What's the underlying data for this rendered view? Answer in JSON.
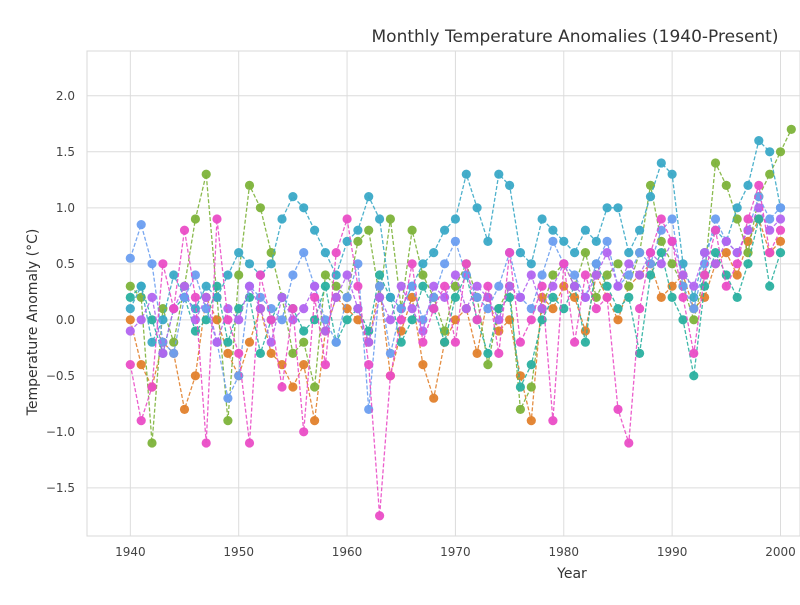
{
  "chart_data": {
    "type": "line",
    "title": "Monthly Temperature Anomalies (1940-Present)",
    "xlabel": "Year",
    "ylabel": "Temperature Anomaly (°C)",
    "xlim": [
      1936,
      2001.8
    ],
    "ylim": [
      -1.93,
      2.4
    ],
    "grid": true,
    "legend": "none",
    "x_ticks": [
      1940,
      1950,
      1960,
      1970,
      1980,
      1990,
      2000
    ],
    "x_tick_labels": [
      "1940",
      "1950",
      "1960",
      "1970",
      "1980",
      "1990",
      "2000"
    ],
    "y_ticks": [
      -1.5,
      -1.0,
      -0.5,
      0.0,
      0.5,
      1.0,
      1.5,
      2.0
    ],
    "y_tick_labels": [
      "−1.5",
      "−1.0",
      "−0.5",
      "0.0",
      "0.5",
      "1.0",
      "1.5",
      "2.0"
    ],
    "marker": "circle",
    "line_style": "dashed",
    "series": [
      {
        "color": "#e1812c",
        "x": [
          1940,
          1941,
          1942,
          1943,
          1944,
          1945,
          1946,
          1947,
          1948,
          1949,
          1950,
          1951,
          1952,
          1953,
          1954,
          1955,
          1956,
          1957,
          1958,
          1959,
          1960,
          1961,
          1962,
          1963,
          1964,
          1965,
          1966,
          1967,
          1968,
          1969,
          1970,
          1971,
          1972,
          1973,
          1974,
          1975,
          1976,
          1977,
          1978,
          1979,
          1980,
          1981,
          1982,
          1983,
          1984,
          1985,
          1986,
          1987,
          1988,
          1989,
          1990,
          1991,
          1992,
          1993,
          1994,
          1995,
          1996,
          1997,
          1998,
          1999,
          2000
        ],
        "y": [
          0.0,
          -0.4,
          -0.6,
          -0.2,
          -0.3,
          -0.8,
          -0.5,
          0.2,
          0.0,
          -0.3,
          -0.5,
          -0.2,
          0.1,
          -0.3,
          -0.4,
          -0.6,
          -0.4,
          -0.9,
          -0.1,
          0.2,
          0.1,
          0.0,
          -0.2,
          0.3,
          -0.5,
          -0.1,
          0.2,
          -0.4,
          -0.7,
          -0.2,
          0.0,
          0.1,
          -0.3,
          0.2,
          -0.1,
          0.0,
          -0.5,
          -0.9,
          0.2,
          0.1,
          0.3,
          0.2,
          -0.1,
          0.4,
          0.2,
          0.0,
          0.3,
          0.4,
          0.5,
          0.2,
          0.3,
          0.4,
          0.1,
          0.2,
          0.5,
          0.6,
          0.4,
          0.7,
          0.9,
          0.6,
          0.7
        ]
      },
      {
        "color": "#7db33a",
        "x": [
          1940,
          1941,
          1942,
          1943,
          1944,
          1945,
          1946,
          1947,
          1948,
          1949,
          1950,
          1951,
          1952,
          1953,
          1954,
          1955,
          1956,
          1957,
          1958,
          1959,
          1960,
          1961,
          1962,
          1963,
          1964,
          1965,
          1966,
          1967,
          1968,
          1969,
          1970,
          1971,
          1972,
          1973,
          1974,
          1975,
          1976,
          1977,
          1978,
          1979,
          1980,
          1981,
          1982,
          1983,
          1984,
          1985,
          1986,
          1987,
          1988,
          1989,
          1990,
          1991,
          1992,
          1993,
          1994,
          1995,
          1996,
          1997,
          1998,
          1999,
          2000,
          2001
        ],
        "y": [
          0.3,
          0.2,
          -1.1,
          0.1,
          -0.2,
          0.3,
          0.9,
          1.3,
          0.2,
          -0.9,
          0.4,
          1.2,
          1.0,
          0.6,
          0.2,
          -0.3,
          -0.2,
          -0.6,
          0.4,
          0.3,
          0.2,
          0.7,
          0.8,
          0.2,
          0.9,
          0.1,
          0.8,
          0.4,
          0.2,
          -0.1,
          0.3,
          0.5,
          0.2,
          -0.4,
          0.1,
          0.3,
          -0.8,
          -0.6,
          0.1,
          0.4,
          0.5,
          0.3,
          0.6,
          0.2,
          0.4,
          0.5,
          0.3,
          0.6,
          1.2,
          0.7,
          0.5,
          0.3,
          0.0,
          0.4,
          1.4,
          1.2,
          0.9,
          0.6,
          1.1,
          1.3,
          1.5,
          1.7
        ]
      },
      {
        "color": "#2ab0a0",
        "x": [
          1940,
          1941,
          1942,
          1943,
          1944,
          1945,
          1946,
          1947,
          1948,
          1949,
          1950,
          1951,
          1952,
          1953,
          1954,
          1955,
          1956,
          1957,
          1958,
          1959,
          1960,
          1961,
          1962,
          1963,
          1964,
          1965,
          1966,
          1967,
          1968,
          1969,
          1970,
          1971,
          1972,
          1973,
          1974,
          1975,
          1976,
          1977,
          1978,
          1979,
          1980,
          1981,
          1982,
          1983,
          1984,
          1985,
          1986,
          1987,
          1988,
          1989,
          1990,
          1991,
          1992,
          1993,
          1994,
          1995,
          1996,
          1997,
          1998,
          1999,
          2000
        ],
        "y": [
          0.2,
          0.3,
          0.0,
          -0.3,
          0.1,
          0.2,
          -0.1,
          0.0,
          0.3,
          -0.2,
          0.1,
          0.2,
          -0.3,
          0.0,
          0.2,
          0.1,
          -0.1,
          0.0,
          0.3,
          -0.2,
          0.0,
          0.1,
          -0.1,
          0.4,
          0.2,
          -0.2,
          0.0,
          0.3,
          0.1,
          -0.2,
          0.2,
          0.4,
          0.0,
          -0.3,
          0.1,
          0.2,
          -0.6,
          -0.4,
          0.0,
          0.2,
          0.1,
          0.3,
          -0.2,
          0.5,
          0.3,
          0.1,
          0.2,
          -0.3,
          0.4,
          0.6,
          0.2,
          0.0,
          -0.5,
          0.3,
          0.6,
          0.4,
          0.2,
          0.5,
          0.9,
          0.3,
          0.6
        ]
      },
      {
        "color": "#3aa9c7",
        "x": [
          1940,
          1941,
          1942,
          1943,
          1944,
          1945,
          1946,
          1947,
          1948,
          1949,
          1950,
          1951,
          1952,
          1953,
          1954,
          1955,
          1956,
          1957,
          1958,
          1959,
          1960,
          1961,
          1962,
          1963,
          1964,
          1965,
          1966,
          1967,
          1968,
          1969,
          1970,
          1971,
          1972,
          1973,
          1974,
          1975,
          1976,
          1977,
          1978,
          1979,
          1980,
          1981,
          1982,
          1983,
          1984,
          1985,
          1986,
          1987,
          1988,
          1989,
          1990,
          1991,
          1992,
          1993,
          1994,
          1995,
          1996,
          1997,
          1998,
          1999,
          2000
        ],
        "y": [
          0.1,
          0.3,
          -0.2,
          0.0,
          0.4,
          0.2,
          0.1,
          0.3,
          0.2,
          0.4,
          0.6,
          0.5,
          0.4,
          0.5,
          0.9,
          1.1,
          1.0,
          0.8,
          0.6,
          0.4,
          0.7,
          0.8,
          1.1,
          0.9,
          0.2,
          0.1,
          0.3,
          0.5,
          0.6,
          0.8,
          0.9,
          1.3,
          1.0,
          0.7,
          1.3,
          1.2,
          0.6,
          0.5,
          0.9,
          0.8,
          0.7,
          0.6,
          0.8,
          0.7,
          1.0,
          1.0,
          0.6,
          0.8,
          1.1,
          1.4,
          1.3,
          0.5,
          0.2,
          0.6,
          0.8,
          0.7,
          1.0,
          1.2,
          1.6,
          1.5,
          1.0
        ]
      },
      {
        "color": "#6c9ef0",
        "x": [
          1940,
          1941,
          1942,
          1943,
          1944,
          1945,
          1946,
          1947,
          1948,
          1949,
          1950,
          1951,
          1952,
          1953,
          1954,
          1955,
          1956,
          1957,
          1958,
          1959,
          1960,
          1961,
          1962,
          1963,
          1964,
          1965,
          1966,
          1967,
          1968,
          1969,
          1970,
          1971,
          1972,
          1973,
          1974,
          1975,
          1976,
          1977,
          1978,
          1979,
          1980,
          1981,
          1982,
          1983,
          1984,
          1985,
          1986,
          1987,
          1988,
          1989,
          1990,
          1991,
          1992,
          1993,
          1994,
          1995,
          1996,
          1997,
          1998,
          1999,
          2000
        ],
        "y": [
          0.55,
          0.85,
          0.5,
          -0.2,
          -0.3,
          0.2,
          0.4,
          0.1,
          -0.2,
          -0.7,
          -0.5,
          0.3,
          0.2,
          0.1,
          0.0,
          0.4,
          0.6,
          0.3,
          0.0,
          -0.2,
          0.2,
          0.5,
          -0.8,
          0.3,
          -0.3,
          0.1,
          0.3,
          0.0,
          0.2,
          0.5,
          0.7,
          0.4,
          0.2,
          0.1,
          0.3,
          0.6,
          0.2,
          0.1,
          0.4,
          0.7,
          0.5,
          0.4,
          0.2,
          0.5,
          0.7,
          0.3,
          0.4,
          0.6,
          0.5,
          0.8,
          0.9,
          0.3,
          0.1,
          0.5,
          0.9,
          0.7,
          0.6,
          0.8,
          1.1,
          0.9,
          1.0
        ]
      },
      {
        "color": "#b265f0",
        "x": [
          1940,
          1941,
          1942,
          1943,
          1944,
          1945,
          1946,
          1947,
          1948,
          1949,
          1950,
          1951,
          1952,
          1953,
          1954,
          1955,
          1956,
          1957,
          1958,
          1959,
          1960,
          1961,
          1962,
          1963,
          1964,
          1965,
          1966,
          1967,
          1968,
          1969,
          1970,
          1971,
          1972,
          1973,
          1974,
          1975,
          1976,
          1977,
          1978,
          1979,
          1980,
          1981,
          1982,
          1983,
          1984,
          1985,
          1986,
          1987,
          1988,
          1989,
          1990,
          1991,
          1992,
          1993,
          1994,
          1995,
          1996,
          1997,
          1998,
          1999,
          2000
        ],
        "y": [
          -0.1,
          0.0,
          0.2,
          -0.3,
          0.1,
          0.3,
          0.0,
          0.2,
          -0.2,
          0.1,
          0.0,
          0.3,
          0.1,
          -0.2,
          0.2,
          0.0,
          0.1,
          0.3,
          -0.1,
          0.2,
          0.4,
          0.1,
          -0.2,
          0.2,
          0.0,
          0.3,
          0.1,
          -0.1,
          0.3,
          0.2,
          0.4,
          0.1,
          0.3,
          0.2,
          0.0,
          0.3,
          0.2,
          0.4,
          0.1,
          0.3,
          0.5,
          0.3,
          0.2,
          0.4,
          0.6,
          0.3,
          0.5,
          0.4,
          0.6,
          0.5,
          0.7,
          0.4,
          0.3,
          0.6,
          0.5,
          0.7,
          0.6,
          0.8,
          1.0,
          0.8,
          0.9
        ]
      },
      {
        "color": "#ea4dc6",
        "x": [
          1940,
          1941,
          1942,
          1943,
          1944,
          1945,
          1946,
          1947,
          1948,
          1949,
          1950,
          1951,
          1952,
          1953,
          1954,
          1955,
          1956,
          1957,
          1958,
          1959,
          1960,
          1961,
          1962,
          1963,
          1964,
          1965,
          1966,
          1967,
          1968,
          1969,
          1970,
          1971,
          1972,
          1973,
          1974,
          1975,
          1976,
          1977,
          1978,
          1979,
          1980,
          1981,
          1982,
          1983,
          1984,
          1985,
          1986,
          1987,
          1988,
          1989,
          1990,
          1991,
          1992,
          1993,
          1994,
          1995,
          1996,
          1997,
          1998,
          1999,
          2000
        ],
        "y": [
          -0.4,
          -0.9,
          -0.6,
          0.5,
          0.1,
          0.8,
          0.2,
          -1.1,
          0.9,
          0.0,
          -0.3,
          -1.1,
          0.4,
          0.0,
          -0.6,
          0.1,
          -1.0,
          0.2,
          -0.4,
          0.6,
          0.9,
          0.3,
          -0.4,
          -1.75,
          -0.5,
          0.0,
          0.5,
          -0.2,
          0.1,
          0.3,
          -0.2,
          0.5,
          0.0,
          0.3,
          -0.3,
          0.6,
          -0.2,
          0.0,
          0.3,
          -0.9,
          0.5,
          -0.2,
          0.4,
          0.1,
          0.2,
          -0.8,
          -1.1,
          0.1,
          0.6,
          0.9,
          0.7,
          0.2,
          -0.3,
          0.4,
          0.8,
          0.3,
          0.5,
          0.9,
          1.2,
          0.6,
          0.8
        ]
      }
    ]
  }
}
